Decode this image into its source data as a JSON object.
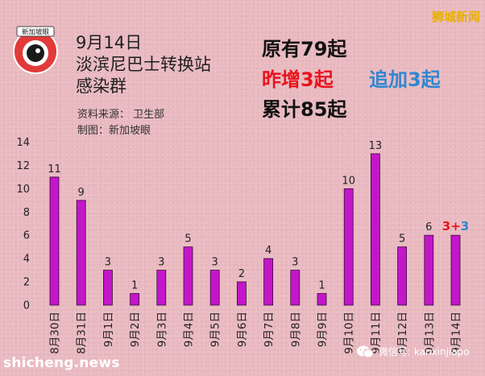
{
  "brand": "狮城新闻",
  "header": {
    "date": "9月14日",
    "line2": "淡滨尼巴士转换站",
    "line3": "感染群",
    "source": "资料来源： 卫生部",
    "maker": "制图：新加坡眼",
    "logo_text": "新加坡眼"
  },
  "stats": {
    "original": "原有79起",
    "yesterday": "昨增3起",
    "added": "追加3起",
    "total": "累计85起"
  },
  "watermarks": {
    "left": "shicheng.news",
    "right": "微信号: kanxinjiapo"
  },
  "chart_data": {
    "type": "bar",
    "categories": [
      "8月30日",
      "8月31日",
      "9月1日",
      "9月2日",
      "9月3日",
      "9月4日",
      "9月5日",
      "9月6日",
      "9月7日",
      "9月8日",
      "9月9日",
      "9月10日",
      "9月11日",
      "9月12日",
      "9月13日",
      "9月14日"
    ],
    "values": [
      11,
      9,
      3,
      1,
      3,
      5,
      3,
      2,
      4,
      3,
      1,
      10,
      13,
      5,
      6,
      6
    ],
    "labels": [
      "11",
      "9",
      "3",
      "1",
      "3",
      "5",
      "3",
      "2",
      "4",
      "3",
      "1",
      "10",
      "13",
      "5",
      "6",
      ""
    ],
    "last_label_parts": [
      {
        "text": "3",
        "color": "#e8141e"
      },
      {
        "text": "+",
        "color": "#e8141e"
      },
      {
        "text": "3",
        "color": "#2f87d2"
      }
    ],
    "yticks": [
      0,
      2,
      4,
      6,
      8,
      10,
      12,
      14
    ],
    "ylim": [
      0,
      14
    ],
    "bar_color": "#c316c9",
    "bar_edge": "#3a0a3a",
    "grid": false,
    "title": "",
    "xlabel": "",
    "ylabel": ""
  }
}
